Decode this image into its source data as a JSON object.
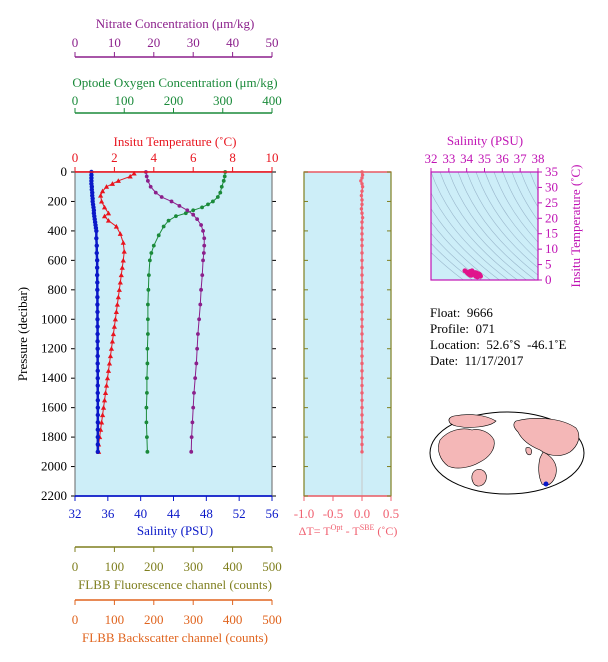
{
  "colors": {
    "nitrate": "#8b1f8b",
    "oxygen": "#1a8a3a",
    "temperature": "#e8141e",
    "salinity": "#0a18c8",
    "fluorescence": "#7f7f1f",
    "backscatter": "#e0641e",
    "delta_t": "#f06070",
    "plot_bg": "#cdeef8",
    "ts_line": "#9ab7cc",
    "ts_points": "#e0148c"
  },
  "info": {
    "float": "Float:  9666",
    "profile": "Profile:  071",
    "location": "Location:  52.6˚S  -46.1˚E",
    "date": "Date:  11/17/2017"
  },
  "chart_data": [
    {
      "type": "line",
      "id": "profile-panel",
      "ylabel": "Pressure (decibar)",
      "ylim": [
        2200,
        0
      ],
      "yticks": [
        0,
        200,
        400,
        600,
        800,
        1000,
        1200,
        1400,
        1600,
        1800,
        2000,
        2200
      ],
      "axes": [
        {
          "key": "nitrate",
          "label": "Nitrate Concentration (μm/kg)",
          "range": [
            0,
            50
          ],
          "ticks": [
            0,
            10,
            20,
            30,
            40,
            50
          ],
          "position": "top"
        },
        {
          "key": "oxygen",
          "label": "Optode Oxygen Concentration (μm/kg)",
          "range": [
            0,
            400
          ],
          "ticks": [
            0,
            100,
            200,
            300,
            400
          ],
          "position": "top"
        },
        {
          "key": "temperature",
          "label": "Insitu Temperature (˚C)",
          "range": [
            0,
            10
          ],
          "ticks": [
            0,
            2,
            4,
            6,
            8,
            10
          ],
          "position": "top"
        },
        {
          "key": "salinity",
          "label": "Salinity (PSU)",
          "range": [
            32,
            56
          ],
          "ticks": [
            32,
            36,
            40,
            44,
            48,
            52,
            56
          ],
          "position": "bottom"
        },
        {
          "key": "fluorescence",
          "label": "FLBB Fluorescence channel (counts)",
          "range": [
            0,
            500
          ],
          "ticks": [
            0,
            100,
            200,
            300,
            400,
            500
          ],
          "position": "bottom"
        },
        {
          "key": "backscatter",
          "label": "FLBB Backscatter channel (counts)",
          "range": [
            0,
            500
          ],
          "ticks": [
            0,
            100,
            200,
            300,
            400,
            500
          ],
          "position": "bottom"
        }
      ],
      "series": [
        {
          "key": "salinity",
          "marker": "circle",
          "points": [
            [
              34.0,
              0
            ],
            [
              34.0,
              20
            ],
            [
              34.0,
              40
            ],
            [
              34.0,
              60
            ],
            [
              34.0,
              80
            ],
            [
              34.05,
              100
            ],
            [
              34.05,
              120
            ],
            [
              34.1,
              140
            ],
            [
              34.1,
              160
            ],
            [
              34.15,
              180
            ],
            [
              34.15,
              200
            ],
            [
              34.2,
              220
            ],
            [
              34.25,
              240
            ],
            [
              34.3,
              260
            ],
            [
              34.3,
              280
            ],
            [
              34.35,
              300
            ],
            [
              34.4,
              320
            ],
            [
              34.45,
              340
            ],
            [
              34.5,
              360
            ],
            [
              34.55,
              380
            ],
            [
              34.6,
              400
            ],
            [
              34.6,
              450
            ],
            [
              34.65,
              500
            ],
            [
              34.65,
              550
            ],
            [
              34.7,
              600
            ],
            [
              34.7,
              650
            ],
            [
              34.7,
              700
            ],
            [
              34.72,
              750
            ],
            [
              34.72,
              800
            ],
            [
              34.73,
              850
            ],
            [
              34.73,
              900
            ],
            [
              34.74,
              950
            ],
            [
              34.74,
              1000
            ],
            [
              34.75,
              1050
            ],
            [
              34.75,
              1100
            ],
            [
              34.75,
              1150
            ],
            [
              34.76,
              1200
            ],
            [
              34.76,
              1250
            ],
            [
              34.76,
              1300
            ],
            [
              34.77,
              1350
            ],
            [
              34.77,
              1400
            ],
            [
              34.77,
              1450
            ],
            [
              34.77,
              1500
            ],
            [
              34.78,
              1550
            ],
            [
              34.78,
              1600
            ],
            [
              34.78,
              1650
            ],
            [
              34.78,
              1700
            ],
            [
              34.78,
              1750
            ],
            [
              34.78,
              1800
            ],
            [
              34.78,
              1850
            ],
            [
              34.78,
              1900
            ]
          ]
        },
        {
          "key": "temperature",
          "marker": "triangle",
          "points": [
            [
              3.0,
              10
            ],
            [
              2.8,
              30
            ],
            [
              2.2,
              60
            ],
            [
              1.9,
              80
            ],
            [
              1.6,
              100
            ],
            [
              1.4,
              130
            ],
            [
              1.3,
              160
            ],
            [
              1.35,
              200
            ],
            [
              1.5,
              240
            ],
            [
              1.7,
              280
            ],
            [
              1.5,
              300
            ],
            [
              1.7,
              330
            ],
            [
              2.1,
              370
            ],
            [
              2.3,
              420
            ],
            [
              2.45,
              480
            ],
            [
              2.5,
              540
            ],
            [
              2.45,
              600
            ],
            [
              2.4,
              650
            ],
            [
              2.35,
              700
            ],
            [
              2.3,
              750
            ],
            [
              2.25,
              800
            ],
            [
              2.2,
              850
            ],
            [
              2.15,
              900
            ],
            [
              2.1,
              950
            ],
            [
              2.05,
              1000
            ],
            [
              2.0,
              1050
            ],
            [
              1.95,
              1100
            ],
            [
              1.9,
              1150
            ],
            [
              1.85,
              1200
            ],
            [
              1.8,
              1250
            ],
            [
              1.75,
              1300
            ],
            [
              1.7,
              1350
            ],
            [
              1.65,
              1400
            ],
            [
              1.6,
              1450
            ],
            [
              1.55,
              1500
            ],
            [
              1.5,
              1550
            ],
            [
              1.45,
              1600
            ],
            [
              1.4,
              1650
            ],
            [
              1.35,
              1700
            ],
            [
              1.3,
              1750
            ],
            [
              1.25,
              1800
            ],
            [
              1.2,
              1850
            ],
            [
              1.2,
              1900
            ]
          ]
        },
        {
          "key": "oxygen",
          "marker": "circle",
          "points": [
            [
              305,
              0
            ],
            [
              304,
              30
            ],
            [
              302,
              60
            ],
            [
              298,
              100
            ],
            [
              295,
              140
            ],
            [
              290,
              170
            ],
            [
              280,
              200
            ],
            [
              270,
              220
            ],
            [
              258,
              240
            ],
            [
              240,
              260
            ],
            [
              225,
              280
            ],
            [
              205,
              300
            ],
            [
              190,
              330
            ],
            [
              180,
              370
            ],
            [
              170,
              430
            ],
            [
              160,
              500
            ],
            [
              155,
              550
            ],
            [
              152,
              600
            ],
            [
              150,
              700
            ],
            [
              149,
              800
            ],
            [
              148,
              900
            ],
            [
              148,
              1000
            ],
            [
              148,
              1100
            ],
            [
              147,
              1200
            ],
            [
              147,
              1300
            ],
            [
              146,
              1400
            ],
            [
              146,
              1500
            ],
            [
              145,
              1600
            ],
            [
              145,
              1700
            ],
            [
              146,
              1800
            ],
            [
              147,
              1900
            ]
          ]
        },
        {
          "key": "nitrate",
          "marker": "circle",
          "points": [
            [
              18.0,
              0
            ],
            [
              18.2,
              30
            ],
            [
              18.5,
              60
            ],
            [
              19.2,
              100
            ],
            [
              20.5,
              140
            ],
            [
              22.0,
              170
            ],
            [
              24.5,
              200
            ],
            [
              26.5,
              230
            ],
            [
              28.5,
              260
            ],
            [
              30.0,
              290
            ],
            [
              31.0,
              320
            ],
            [
              32.0,
              360
            ],
            [
              32.5,
              400
            ],
            [
              32.8,
              450
            ],
            [
              32.8,
              500
            ],
            [
              32.7,
              550
            ],
            [
              32.5,
              600
            ],
            [
              32.3,
              700
            ],
            [
              32.0,
              800
            ],
            [
              31.8,
              900
            ],
            [
              31.5,
              1000
            ],
            [
              31.2,
              1100
            ],
            [
              31.0,
              1200
            ],
            [
              30.8,
              1300
            ],
            [
              30.5,
              1400
            ],
            [
              30.2,
              1500
            ],
            [
              30.0,
              1600
            ],
            [
              29.8,
              1700
            ],
            [
              29.6,
              1800
            ],
            [
              29.5,
              1900
            ]
          ]
        }
      ]
    },
    {
      "type": "line",
      "id": "delta-t-panel",
      "xlabel": "ΔT= T^Opt - T^SBE (˚C)",
      "xlabel_parts": {
        "pre": "ΔT= T",
        "sup1": "Opt",
        "mid": " - T",
        "sup2": "SBE",
        "post": " (˚C)"
      },
      "xlim": [
        -1.0,
        0.5
      ],
      "xticks": [
        -1.0,
        -0.5,
        0.0,
        0.5
      ],
      "xtick_labels": [
        "-1.0",
        "-0.5",
        "0.0",
        "0.5"
      ],
      "ylim": [
        2200,
        0
      ],
      "series": [
        {
          "key": "delta_t",
          "marker": "circle",
          "points": [
            [
              0.0,
              0
            ],
            [
              0.01,
              20
            ],
            [
              0.0,
              40
            ],
            [
              -0.02,
              60
            ],
            [
              0.0,
              80
            ],
            [
              0.01,
              100
            ],
            [
              0.0,
              130
            ],
            [
              -0.01,
              160
            ],
            [
              0.0,
              190
            ],
            [
              0.0,
              220
            ],
            [
              -0.01,
              250
            ],
            [
              0.0,
              280
            ],
            [
              0.01,
              310
            ],
            [
              0.0,
              340
            ],
            [
              0.0,
              380
            ],
            [
              0.0,
              420
            ],
            [
              0.0,
              460
            ],
            [
              0.0,
              500
            ],
            [
              0.0,
              550
            ],
            [
              0.0,
              600
            ],
            [
              0.0,
              650
            ],
            [
              0.0,
              700
            ],
            [
              0.0,
              750
            ],
            [
              0.0,
              800
            ],
            [
              0.0,
              850
            ],
            [
              0.0,
              900
            ],
            [
              0.0,
              950
            ],
            [
              0.0,
              1000
            ],
            [
              0.0,
              1050
            ],
            [
              0.0,
              1100
            ],
            [
              0.0,
              1150
            ],
            [
              0.0,
              1200
            ],
            [
              0.0,
              1250
            ],
            [
              0.0,
              1300
            ],
            [
              0.0,
              1350
            ],
            [
              0.0,
              1400
            ],
            [
              0.0,
              1450
            ],
            [
              0.0,
              1500
            ],
            [
              0.0,
              1550
            ],
            [
              0.0,
              1600
            ],
            [
              0.0,
              1650
            ],
            [
              0.0,
              1700
            ],
            [
              0.0,
              1750
            ],
            [
              0.0,
              1800
            ],
            [
              0.0,
              1850
            ],
            [
              0.0,
              1900
            ]
          ]
        }
      ]
    },
    {
      "type": "scatter",
      "id": "ts-panel",
      "title": "Salinity (PSU)",
      "xlim": [
        32,
        38
      ],
      "xticks": [
        32,
        33,
        34,
        35,
        36,
        37,
        38
      ],
      "ylabel": "Insitu Temperature (˚C)",
      "ylim": [
        0,
        35
      ],
      "yticks": [
        0,
        5,
        10,
        15,
        20,
        25,
        30,
        35
      ],
      "grid": false,
      "points": [
        [
          33.9,
          3.0
        ],
        [
          34.0,
          2.6
        ],
        [
          34.05,
          2.3
        ],
        [
          34.1,
          2.0
        ],
        [
          34.15,
          1.8
        ],
        [
          34.2,
          1.6
        ],
        [
          34.25,
          1.5
        ],
        [
          34.3,
          1.7
        ],
        [
          34.35,
          2.0
        ],
        [
          34.4,
          2.3
        ],
        [
          34.45,
          2.4
        ],
        [
          34.5,
          2.4
        ],
        [
          34.55,
          2.3
        ],
        [
          34.6,
          2.1
        ],
        [
          34.65,
          2.0
        ],
        [
          34.7,
          1.9
        ],
        [
          34.72,
          1.8
        ],
        [
          34.74,
          1.6
        ],
        [
          34.76,
          1.4
        ],
        [
          34.78,
          1.2
        ],
        [
          34.3,
          3.0
        ],
        [
          34.2,
          2.8
        ],
        [
          34.5,
          1.2
        ],
        [
          34.6,
          1.0
        ]
      ]
    }
  ]
}
